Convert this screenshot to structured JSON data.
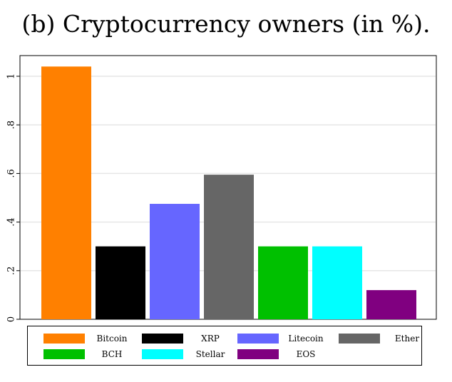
{
  "title": "(b) Cryptocurrency owners (in %).",
  "chart_data": {
    "type": "bar",
    "categories": [
      "Bitcoin",
      "XRP",
      "Litecoin",
      "Ether",
      "BCH",
      "Stellar",
      "EOS"
    ],
    "values": [
      1.04,
      0.3,
      0.475,
      0.595,
      0.3,
      0.3,
      0.12
    ],
    "colors": [
      "#ff8000",
      "#000000",
      "#6666ff",
      "#666666",
      "#00c000",
      "#00ffff",
      "#800080"
    ],
    "yticks": [
      0,
      0.2,
      0.4,
      0.6,
      0.8,
      1
    ],
    "ytick_labels": [
      "0",
      ".2",
      ".4",
      ".6",
      ".8",
      "1"
    ],
    "ylim": [
      0,
      1.05
    ],
    "grid": true,
    "legend_position": "bottom",
    "xlabel": "",
    "ylabel": ""
  }
}
